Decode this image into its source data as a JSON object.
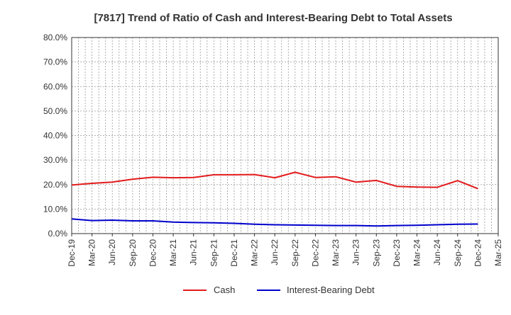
{
  "chart_data": {
    "type": "line",
    "title": "[7817]  Trend of Ratio of Cash and Interest-Bearing Debt to Total Assets",
    "x": [
      "Dec-19",
      "Mar-20",
      "Jun-20",
      "Sep-20",
      "Dec-20",
      "Mar-21",
      "Jun-21",
      "Sep-21",
      "Dec-21",
      "Mar-22",
      "Jun-22",
      "Sep-22",
      "Dec-22",
      "Mar-23",
      "Jun-23",
      "Sep-23",
      "Dec-23",
      "Mar-24",
      "Jun-24",
      "Sep-24",
      "Dec-24",
      "Mar-25"
    ],
    "ylim": [
      0,
      80
    ],
    "yticks": [
      0,
      10,
      20,
      30,
      40,
      50,
      60,
      70,
      80
    ],
    "ytick_labels": [
      "0.0%",
      "10.0%",
      "20.0%",
      "30.0%",
      "40.0%",
      "50.0%",
      "60.0%",
      "70.0%",
      "80.0%"
    ],
    "grid": true,
    "legend_position": "bottom",
    "series": [
      {
        "name": "Cash",
        "color": "#e31a1c",
        "values": [
          19.8,
          20.5,
          21.0,
          22.2,
          23.0,
          22.8,
          22.9,
          24.0,
          24.0,
          24.1,
          22.8,
          25.0,
          22.9,
          23.2,
          21.0,
          21.7,
          19.3,
          19.0,
          18.9,
          21.6,
          18.3,
          null
        ]
      },
      {
        "name": "Interest-Bearing Debt",
        "color": "#0000cc",
        "values": [
          6.0,
          5.3,
          5.5,
          5.2,
          5.2,
          4.7,
          4.5,
          4.4,
          4.2,
          3.8,
          3.6,
          3.5,
          3.4,
          3.3,
          3.3,
          3.1,
          3.3,
          3.4,
          3.6,
          3.8,
          3.9,
          null
        ]
      }
    ]
  }
}
